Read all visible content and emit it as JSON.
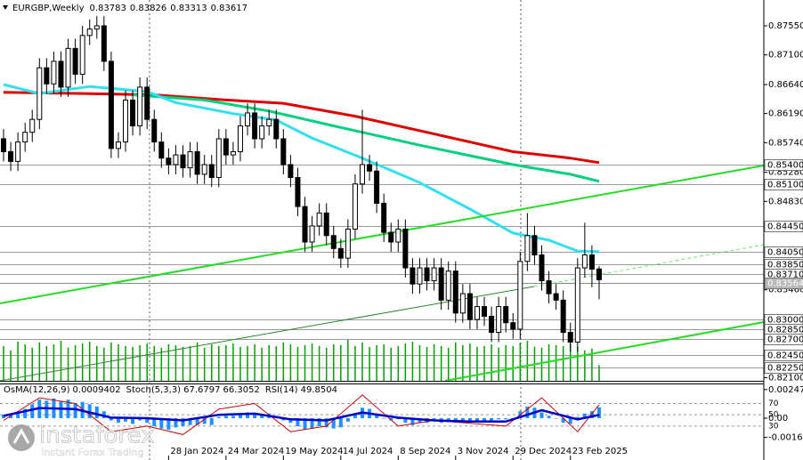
{
  "chart_data": {
    "type": "candlestick",
    "symbol": "EURGBP,Weekly",
    "open": [
      0.858,
      0.856,
      0.8545,
      0.8575,
      0.859,
      0.861,
      0.869,
      0.8665,
      0.87,
      0.866,
      0.872,
      0.868,
      0.874,
      0.875,
      0.8755,
      0.87,
      0.8565,
      0.8575,
      0.864,
      0.86,
      0.866,
      0.861,
      0.8575,
      0.855,
      0.854,
      0.8555,
      0.8535,
      0.856,
      0.8525,
      0.854,
      0.852,
      0.858,
      0.8555,
      0.856,
      0.86,
      0.862,
      0.858,
      0.86,
      0.861,
      0.858,
      0.854,
      0.852,
      0.8475,
      0.842,
      0.8445,
      0.8465,
      0.843,
      0.841,
      0.8395,
      0.844,
      0.851,
      0.854,
      0.853,
      0.848,
      0.8435,
      0.842,
      0.844,
      0.838,
      0.8355,
      0.838,
      0.836,
      0.838,
      0.833,
      0.8375,
      0.831,
      0.834,
      0.83,
      0.832,
      0.8305,
      0.828,
      0.832,
      0.8295,
      0.8285,
      0.839,
      0.843,
      0.84,
      0.836,
      0.834,
      0.833,
      0.828,
      0.8265,
      0.838,
      0.84,
      0.83783
    ],
    "high": [
      0.8595,
      0.8575,
      0.859,
      0.8605,
      0.8625,
      0.8705,
      0.8705,
      0.8715,
      0.8715,
      0.8735,
      0.8735,
      0.8755,
      0.8765,
      0.877,
      0.877,
      0.8715,
      0.859,
      0.8655,
      0.8655,
      0.8675,
      0.8675,
      0.8625,
      0.859,
      0.8565,
      0.857,
      0.857,
      0.8575,
      0.8575,
      0.8555,
      0.8555,
      0.8595,
      0.8595,
      0.8575,
      0.8615,
      0.8635,
      0.8635,
      0.8615,
      0.8625,
      0.8625,
      0.8595,
      0.8555,
      0.8535,
      0.849,
      0.846,
      0.848,
      0.848,
      0.8445,
      0.8425,
      0.8455,
      0.8525,
      0.8625,
      0.8555,
      0.8545,
      0.8495,
      0.845,
      0.8455,
      0.8455,
      0.8395,
      0.8395,
      0.8395,
      0.8395,
      0.8395,
      0.839,
      0.839,
      0.8355,
      0.8355,
      0.8335,
      0.8335,
      0.832,
      0.8335,
      0.8335,
      0.831,
      0.8405,
      0.8465,
      0.8445,
      0.8415,
      0.8375,
      0.8355,
      0.8345,
      0.8295,
      0.8395,
      0.845,
      0.8415,
      0.83826
    ],
    "low": [
      0.8545,
      0.853,
      0.853,
      0.856,
      0.8575,
      0.8595,
      0.865,
      0.865,
      0.8645,
      0.8645,
      0.8665,
      0.8665,
      0.8725,
      0.8735,
      0.8685,
      0.855,
      0.855,
      0.856,
      0.8585,
      0.8585,
      0.8595,
      0.856,
      0.8535,
      0.8525,
      0.8525,
      0.852,
      0.852,
      0.851,
      0.851,
      0.8505,
      0.8505,
      0.854,
      0.854,
      0.8545,
      0.8585,
      0.8565,
      0.8565,
      0.8585,
      0.8565,
      0.8525,
      0.8505,
      0.846,
      0.8405,
      0.8405,
      0.843,
      0.8415,
      0.8395,
      0.838,
      0.838,
      0.8425,
      0.8495,
      0.8515,
      0.8465,
      0.842,
      0.8405,
      0.8405,
      0.8365,
      0.834,
      0.834,
      0.8345,
      0.8345,
      0.8315,
      0.8315,
      0.8295,
      0.8295,
      0.8285,
      0.8285,
      0.829,
      0.8265,
      0.8265,
      0.828,
      0.827,
      0.827,
      0.8375,
      0.8385,
      0.8345,
      0.8325,
      0.8315,
      0.8265,
      0.825,
      0.825,
      0.8365,
      0.835,
      0.83313
    ],
    "close": [
      0.856,
      0.8545,
      0.8575,
      0.859,
      0.861,
      0.869,
      0.8665,
      0.87,
      0.866,
      0.872,
      0.868,
      0.874,
      0.875,
      0.8755,
      0.87,
      0.8565,
      0.8575,
      0.864,
      0.86,
      0.866,
      0.861,
      0.8575,
      0.855,
      0.854,
      0.8555,
      0.8535,
      0.856,
      0.8525,
      0.854,
      0.852,
      0.858,
      0.8555,
      0.856,
      0.86,
      0.862,
      0.858,
      0.86,
      0.861,
      0.858,
      0.854,
      0.852,
      0.8475,
      0.842,
      0.8445,
      0.8465,
      0.843,
      0.841,
      0.8395,
      0.844,
      0.851,
      0.854,
      0.853,
      0.848,
      0.8435,
      0.842,
      0.844,
      0.838,
      0.8355,
      0.838,
      0.836,
      0.838,
      0.833,
      0.8375,
      0.831,
      0.834,
      0.83,
      0.832,
      0.8305,
      0.828,
      0.832,
      0.8295,
      0.8285,
      0.839,
      0.843,
      0.84,
      0.836,
      0.834,
      0.833,
      0.828,
      0.8265,
      0.838,
      0.84,
      0.8378,
      0.83617
    ],
    "volume": [
      40,
      35,
      45,
      42,
      38,
      44,
      40,
      42,
      46,
      38,
      41,
      43,
      45,
      40,
      38,
      44,
      42,
      40,
      39,
      41,
      43,
      40,
      38,
      42,
      41,
      39,
      40,
      44,
      38,
      42,
      40,
      41,
      43,
      39,
      40,
      42,
      38,
      41,
      40,
      44,
      42,
      39,
      41,
      43,
      40,
      38,
      42,
      41,
      47,
      40,
      44,
      39,
      41,
      42,
      38,
      40,
      43,
      45,
      41,
      39,
      42,
      40,
      38,
      44,
      41,
      43,
      39,
      40,
      42,
      38,
      41,
      40,
      44,
      46,
      39,
      38,
      42,
      41,
      40,
      43,
      39,
      35,
      37,
      18
    ],
    "volume_color": "#00a000",
    "categories": [
      null,
      null,
      null,
      null,
      null,
      null,
      null,
      null,
      null,
      null,
      null,
      null,
      null,
      null,
      null,
      null,
      null,
      null,
      null,
      null,
      null,
      null,
      null,
      "28 Jan 2024",
      null,
      null,
      null,
      null,
      null,
      null,
      null,
      "24 Mar 2024",
      null,
      null,
      null,
      null,
      null,
      null,
      null,
      "19 May 2024",
      null,
      null,
      null,
      null,
      null,
      null,
      null,
      "14 Jul 2024",
      null,
      null,
      null,
      null,
      null,
      null,
      null,
      "8 Sep 2024",
      null,
      null,
      null,
      null,
      null,
      null,
      null,
      "3 Nov 2024",
      null,
      null,
      null,
      null,
      null,
      null,
      null,
      "29 Dec 2024",
      null,
      null,
      null,
      null,
      null,
      null,
      null,
      "23 Feb 2025",
      null,
      null,
      null,
      null
    ],
    "ylim": [
      0.8205,
      0.8795
    ],
    "yticks": [
      {
        "value": 0.8755,
        "label": "0.87550"
      },
      {
        "value": 0.871,
        "label": "0.87100"
      },
      {
        "value": 0.8664,
        "label": "0.86640"
      },
      {
        "value": 0.8619,
        "label": "0.86190"
      },
      {
        "value": 0.8574,
        "label": "0.85740"
      },
      {
        "value": 0.8528,
        "label": "0.85280"
      },
      {
        "value": 0.8483,
        "label": "0.84830"
      },
      {
        "value": 0.8346,
        "label": "0.83460"
      },
      {
        "value": 0.821,
        "label": "0.82100"
      }
    ],
    "levels": [
      {
        "value": 0.854,
        "label": "0.85400"
      },
      {
        "value": 0.851,
        "label": "0.85100"
      },
      {
        "value": 0.8445,
        "label": "0.84450"
      },
      {
        "value": 0.8405,
        "label": "0.84050"
      },
      {
        "value": 0.8385,
        "label": "0.83850"
      },
      {
        "value": 0.8371,
        "label": "0.83710"
      },
      {
        "value": 0.83,
        "label": "0.83000"
      },
      {
        "value": 0.8285,
        "label": "0.82850"
      },
      {
        "value": 0.827,
        "label": "0.82700"
      },
      {
        "value": 0.8245,
        "label": "0.82450"
      },
      {
        "value": 0.8225,
        "label": "0.82250"
      }
    ],
    "bid_level": 0.83564,
    "moving_averages": [
      {
        "color": "#e00000",
        "x": [
          0,
          12,
          21,
          31,
          39,
          49,
          59,
          71,
          79,
          83
        ],
        "values": [
          0.8652,
          0.865,
          0.8648,
          0.864,
          0.8635,
          0.8615,
          0.859,
          0.856,
          0.855,
          0.8543
        ]
      },
      {
        "color": "#00d080",
        "x": [
          18,
          28,
          37,
          46,
          58,
          71,
          79,
          83
        ],
        "values": [
          0.8648,
          0.864,
          0.8623,
          0.86,
          0.857,
          0.854,
          0.8525,
          0.8514
        ]
      },
      {
        "color": "#30e0f0",
        "x": [
          0,
          5,
          12,
          20,
          24,
          32,
          38,
          43,
          50,
          58,
          65,
          71,
          76,
          80,
          83
        ],
        "values": [
          0.8664,
          0.865,
          0.8661,
          0.8653,
          0.8636,
          0.8619,
          0.8609,
          0.8581,
          0.855,
          0.8512,
          0.8471,
          0.8434,
          0.8423,
          0.8406,
          0.8405
        ]
      }
    ],
    "oscillator": {
      "osma_label": "OsMA(12,26,9)",
      "stoch_label": "Stoch(5,3,3)",
      "rsi_label": "RSI(14)",
      "osma": [
        0.0003,
        0.0002,
        0.0005,
        0.0008,
        0.0012,
        0.0016,
        0.0015,
        0.0017,
        0.0015,
        0.0016,
        0.0013,
        0.0014,
        0.0012,
        0.001,
        0.0006,
        -0.0002,
        -0.0004,
        -0.0003,
        -0.0005,
        -0.0002,
        -0.0004,
        -0.0007,
        -0.0009,
        -0.001,
        -0.0008,
        -0.0007,
        -0.0006,
        -0.0006,
        -0.0005,
        -0.0006,
        0.0001,
        0.0002,
        0.0002,
        0.0004,
        0.0005,
        0.0003,
        0.0003,
        0.0004,
        0.0002,
        -0.0002,
        -0.0004,
        -0.0007,
        -0.001,
        -0.0009,
        -0.0007,
        -0.0008,
        -0.0009,
        -0.0008,
        -0.0003,
        0.0004,
        0.0009,
        0.0008,
        0.0004,
        0.0,
        -0.0002,
        -0.0001,
        -0.0004,
        -0.0006,
        -0.0004,
        -0.0004,
        -0.0002,
        -0.0004,
        -0.0002,
        -0.0004,
        -0.0002,
        -0.0003,
        -0.0002,
        -0.0002,
        -0.0003,
        -0.0001,
        -0.0001,
        -0.0001,
        0.0006,
        0.001,
        0.0009,
        0.0005,
        0.0002,
        0.0,
        -0.0004,
        -0.0005,
        0.0001,
        0.0004,
        0.0006,
        0.0009402
      ],
      "osma_color": "#1e90ff",
      "osma_lim": [
        -0.00362,
        0.00292
      ],
      "osma_ticks": [
        0.0024717,
        {
          "value": 0,
          "label": "0.00"
        },
        -0.001663
      ],
      "x": [
        0,
        5,
        10,
        15,
        20,
        25,
        30,
        35,
        40,
        45,
        50,
        55,
        60,
        65,
        70,
        75,
        80,
        83
      ],
      "stoch": [
        40,
        80,
        70,
        20,
        30,
        15,
        60,
        70,
        20,
        30,
        85,
        30,
        40,
        35,
        30,
        80,
        20,
        67.6797
      ],
      "stoch_signal": 66.3052,
      "stoch_color": "#d00000",
      "rsi": [
        48,
        62,
        60,
        45,
        44,
        40,
        50,
        52,
        42,
        40,
        54,
        45,
        40,
        38,
        38,
        58,
        42,
        49.8504
      ],
      "rsi_color": "#0000c8",
      "stoch_lim": [
        -30,
        103.8
      ],
      "stoch_ticks": [
        70,
        50,
        30
      ]
    },
    "watermark": {
      "brand": "instaforex",
      "tagline": "Instant Forex Trading"
    }
  }
}
